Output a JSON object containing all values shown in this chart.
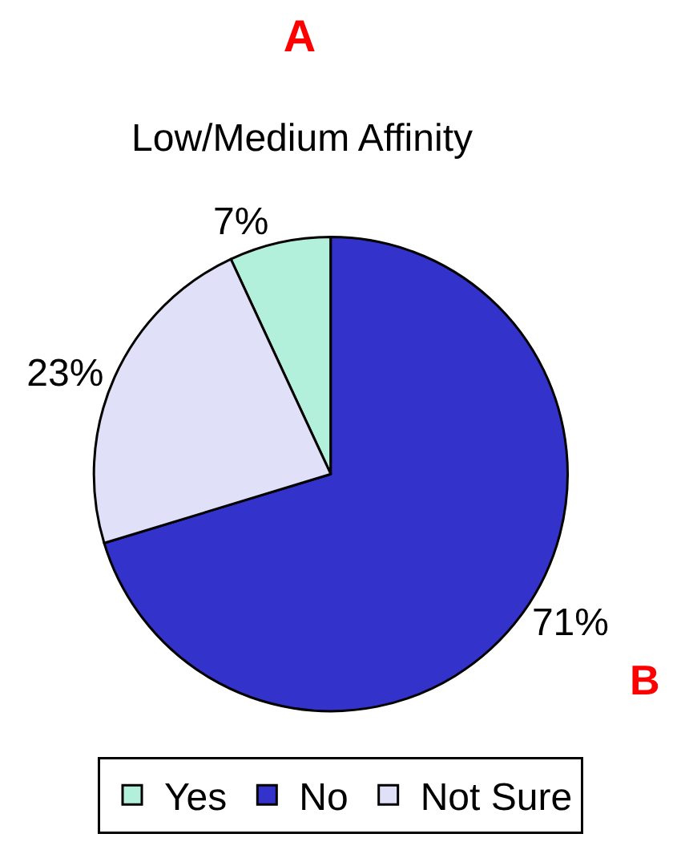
{
  "chart_data": {
    "type": "pie",
    "title": "A",
    "subtitle": "Low/Medium Affinity",
    "categories": [
      "Yes",
      "No",
      "Not Sure"
    ],
    "values": [
      7,
      71,
      23
    ],
    "value_labels": [
      "7%",
      "71%",
      "23%"
    ],
    "colors": [
      "#b3f0dc",
      "#3333cc",
      "#e0e0f8"
    ],
    "annotations": [
      "B"
    ],
    "legend": "bottom"
  }
}
